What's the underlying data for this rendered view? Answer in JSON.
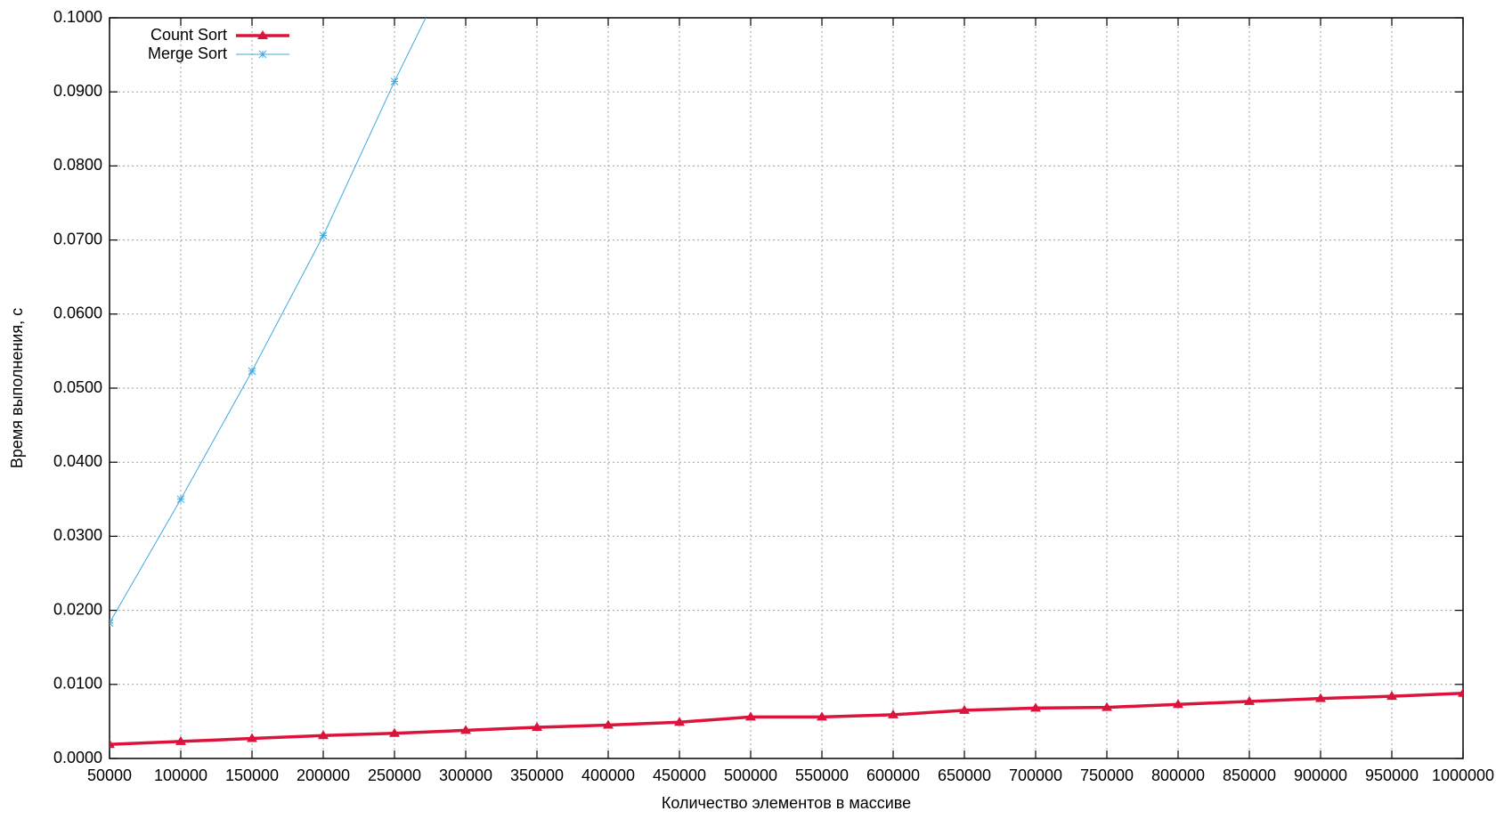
{
  "chart_data": {
    "type": "line",
    "xlabel": "Количество элементов в массиве",
    "ylabel": "Время выполнения, с",
    "x": [
      50000,
      100000,
      150000,
      200000,
      250000,
      300000,
      350000,
      400000,
      450000,
      500000,
      550000,
      600000,
      650000,
      700000,
      750000,
      800000,
      850000,
      900000,
      950000,
      1000000
    ],
    "series": [
      {
        "name": "Count Sort",
        "color": "#dc143c",
        "marker": "triangle",
        "width": 3.5,
        "values": [
          0.0019,
          0.0023,
          0.0027,
          0.0031,
          0.0034,
          0.0038,
          0.0042,
          0.0045,
          0.0049,
          0.0056,
          0.0056,
          0.0059,
          0.0065,
          0.0068,
          0.0069,
          0.0073,
          0.0077,
          0.0081,
          0.0084,
          0.0088
        ]
      },
      {
        "name": "Merge Sort",
        "color": "#3fa9e0",
        "marker": "star",
        "width": 1,
        "values": [
          0.0183,
          0.035,
          0.0523,
          0.0706,
          0.0914,
          0.111,
          null,
          null,
          null,
          null,
          null,
          null,
          null,
          null,
          null,
          null,
          null,
          null,
          null,
          null
        ]
      }
    ],
    "xlim": [
      50000,
      1000000
    ],
    "ylim": [
      0,
      0.1
    ],
    "xticks": [
      50000,
      100000,
      150000,
      200000,
      250000,
      300000,
      350000,
      400000,
      450000,
      500000,
      550000,
      600000,
      650000,
      700000,
      750000,
      800000,
      850000,
      900000,
      950000,
      1000000
    ],
    "yticks": [
      {
        "value": 0,
        "label": "0.0000"
      },
      {
        "value": 0.01,
        "label": "0.0100"
      },
      {
        "value": 0.02,
        "label": "0.0200"
      },
      {
        "value": 0.03,
        "label": "0.0300"
      },
      {
        "value": 0.04,
        "label": "0.0400"
      },
      {
        "value": 0.05,
        "label": "0.0500"
      },
      {
        "value": 0.06,
        "label": "0.0600"
      },
      {
        "value": 0.07,
        "label": "0.0700"
      },
      {
        "value": 0.08,
        "label": "0.0800"
      },
      {
        "value": 0.09,
        "label": "0.0900"
      },
      {
        "value": 0.1,
        "label": "0.1000"
      }
    ],
    "grid": true,
    "legend": "top-left"
  }
}
